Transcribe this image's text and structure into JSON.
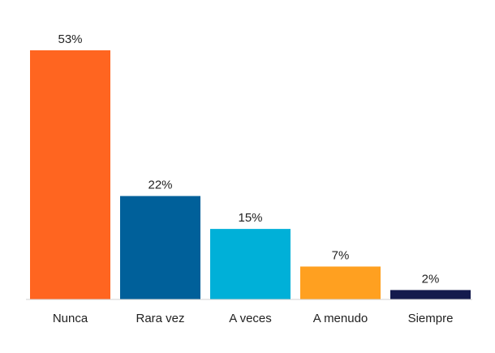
{
  "chart_data": {
    "type": "bar",
    "categories": [
      "Nunca",
      "Rara vez",
      "A veces",
      "A menudo",
      "Siempre"
    ],
    "values": [
      53,
      22,
      15,
      7,
      2
    ],
    "value_labels": [
      "53%",
      "22%",
      "15%",
      "7%",
      "2%"
    ],
    "colors": [
      "#ff6520",
      "#00609a",
      "#00b0d8",
      "#ffa020",
      "#141b4d"
    ],
    "ylim": [
      0,
      53
    ],
    "grid": false,
    "legend": "none"
  }
}
